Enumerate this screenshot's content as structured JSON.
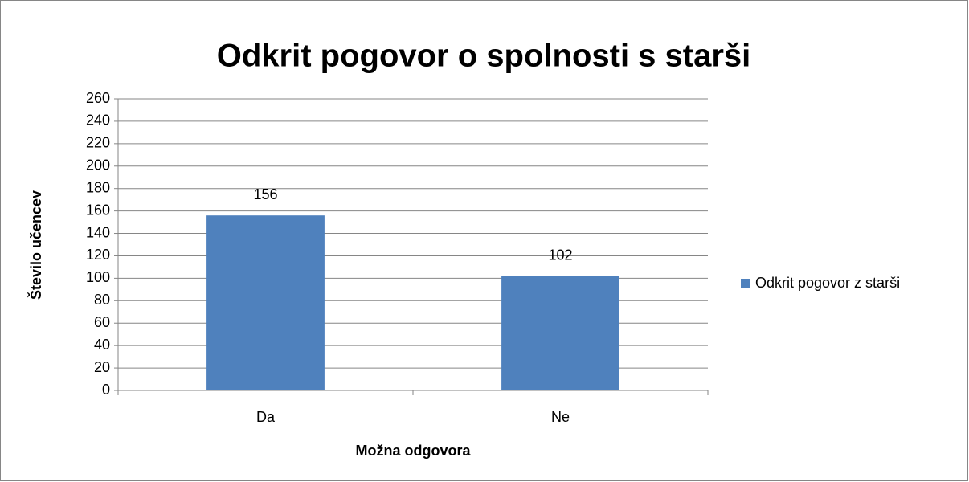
{
  "chart_data": {
    "type": "bar",
    "title": "Odkrit pogovor o spolnosti s starši",
    "categories": [
      "Da",
      "Ne"
    ],
    "series": [
      {
        "name": "Odkrit pogovor z starši",
        "color": "#4f81bd",
        "values": [
          156,
          102
        ]
      }
    ],
    "ylim": [
      0,
      260
    ],
    "yticks": [
      0,
      20,
      40,
      60,
      80,
      100,
      120,
      140,
      160,
      180,
      200,
      220,
      240,
      260
    ],
    "x_label": "Možna odgovora",
    "y_label": "Število učencev",
    "grid": true,
    "legend": "right"
  }
}
